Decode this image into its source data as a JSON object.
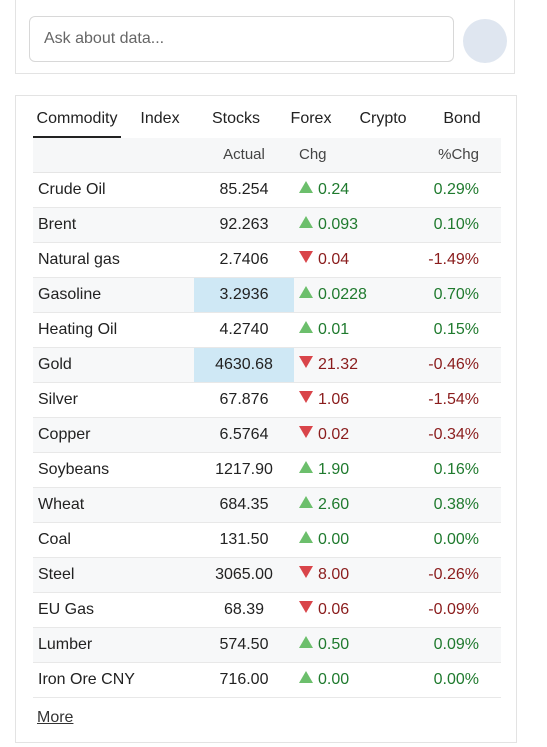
{
  "search": {
    "placeholder": "Ask about data..."
  },
  "tabs": {
    "items": [
      "Commodity",
      "Index",
      "Stocks",
      "Forex",
      "Crypto",
      "Bond"
    ],
    "active_index": 0
  },
  "table": {
    "columns": [
      "Actual",
      "Chg",
      "%Chg"
    ],
    "rows": [
      {
        "name": "Crude Oil",
        "actual": "85.254",
        "chg": "0.24",
        "pct": "0.29%",
        "trend": "up"
      },
      {
        "name": "Brent",
        "actual": "92.263",
        "chg": "0.093",
        "pct": "0.10%",
        "trend": "up"
      },
      {
        "name": "Natural gas",
        "actual": "2.7406",
        "chg": "0.04",
        "pct": "-1.49%",
        "trend": "down"
      },
      {
        "name": "Gasoline",
        "actual": "3.2936",
        "chg": "0.0228",
        "pct": "0.70%",
        "trend": "up",
        "highlighted": true
      },
      {
        "name": "Heating Oil",
        "actual": "4.2740",
        "chg": "0.01",
        "pct": "0.15%",
        "trend": "up"
      },
      {
        "name": "Gold",
        "actual": "4630.68",
        "chg": "21.32",
        "pct": "-0.46%",
        "trend": "down",
        "highlighted": true
      },
      {
        "name": "Silver",
        "actual": "67.876",
        "chg": "1.06",
        "pct": "-1.54%",
        "trend": "down"
      },
      {
        "name": "Copper",
        "actual": "6.5764",
        "chg": "0.02",
        "pct": "-0.34%",
        "trend": "down"
      },
      {
        "name": "Soybeans",
        "actual": "1217.90",
        "chg": "1.90",
        "pct": "0.16%",
        "trend": "up"
      },
      {
        "name": "Wheat",
        "actual": "684.35",
        "chg": "2.60",
        "pct": "0.38%",
        "trend": "up"
      },
      {
        "name": "Coal",
        "actual": "131.50",
        "chg": "0.00",
        "pct": "0.00%",
        "trend": "up"
      },
      {
        "name": "Steel",
        "actual": "3065.00",
        "chg": "8.00",
        "pct": "-0.26%",
        "trend": "down"
      },
      {
        "name": "EU Gas",
        "actual": "68.39",
        "chg": "0.06",
        "pct": "-0.09%",
        "trend": "down"
      },
      {
        "name": "Lumber",
        "actual": "574.50",
        "chg": "0.50",
        "pct": "0.09%",
        "trend": "up"
      },
      {
        "name": "Iron Ore CNY",
        "actual": "716.00",
        "chg": "0.00",
        "pct": "0.00%",
        "trend": "up"
      }
    ]
  },
  "footer": {
    "link": "More"
  }
}
